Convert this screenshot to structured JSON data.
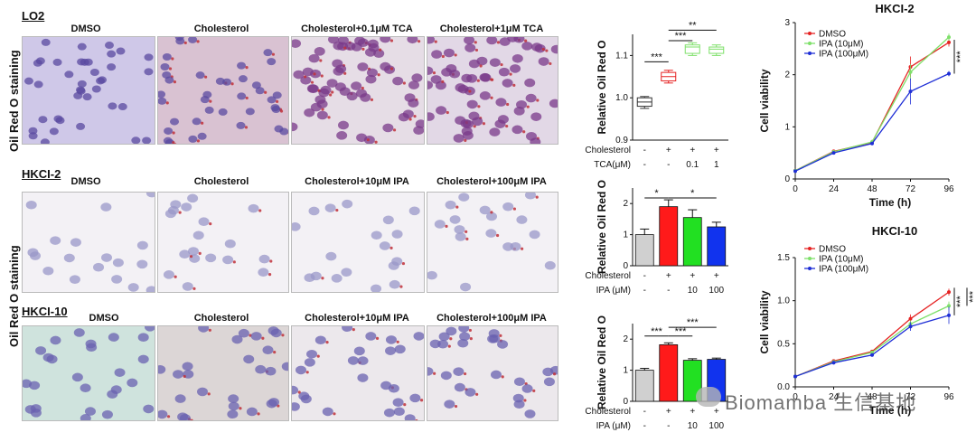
{
  "rows": {
    "lo2": {
      "cell": "LO2",
      "cols": [
        "DMSO",
        "Cholesterol",
        "Cholesterol+0.1μM TCA",
        "Cholesterol+1μM TCA"
      ]
    },
    "hkc2": {
      "cell": "HKCI-2",
      "cols": [
        "DMSO",
        "Cholesterol",
        "Cholesterol+10μM IPA",
        "Cholesterol+100μM IPA"
      ]
    },
    "hkc10": {
      "cell": "HKCI-10",
      "cols": [
        "DMSO",
        "Cholesterol",
        "Cholesterol+10μM IPA",
        "Cholesterol+100μM IPA"
      ]
    }
  },
  "staining_label": "Oil Red O staining",
  "colors": {
    "dmso": "#e52222",
    "low": "#7ee06a",
    "high": "#1f2fd6",
    "grey": "#d0d0d0",
    "red": "#ff1a1a",
    "green": "#22e022",
    "blue": "#1133ee"
  },
  "chart_data": [
    {
      "id": "box_lo2",
      "type": "box",
      "ylabel": "Relative Oil Red O",
      "ylim": [
        0.9,
        1.15
      ],
      "yticks": [
        "0.9",
        "1.0",
        "1.1"
      ],
      "groups": [
        {
          "name": "DMSO",
          "min": 0.975,
          "q1": 0.98,
          "median": 0.99,
          "q3": 1.0,
          "max": 1.003
        },
        {
          "name": "Cholesterol",
          "min": 1.035,
          "q1": 1.04,
          "median": 1.05,
          "q3": 1.06,
          "max": 1.065
        },
        {
          "name": "Cholesterol+0.1μM TCA",
          "min": 1.1,
          "q1": 1.105,
          "median": 1.12,
          "q3": 1.125,
          "max": 1.13
        },
        {
          "name": "Cholesterol+1μM TCA",
          "min": 1.1,
          "q1": 1.105,
          "median": 1.115,
          "q3": 1.12,
          "max": 1.125
        }
      ],
      "row_labels": [
        {
          "label": "Cholesterol",
          "cells": [
            "-",
            "+",
            "+",
            "+"
          ]
        },
        {
          "label": "TCA(μM)",
          "cells": [
            "-",
            "-",
            "0.1",
            "1"
          ]
        }
      ],
      "sigs": [
        {
          "text": "***",
          "from": 0,
          "to": 1,
          "y": 1.085
        },
        {
          "text": "***",
          "from": 1,
          "to": 2,
          "y": 1.135
        },
        {
          "text": "**",
          "from": 1,
          "to": 3,
          "y": 1.16
        }
      ]
    },
    {
      "id": "bar_hkc2",
      "type": "bar",
      "ylabel": "Relative Oil Red O",
      "ylim": [
        0,
        2.5
      ],
      "yticks": [
        "0",
        "1",
        "2"
      ],
      "values": [
        1.0,
        1.9,
        1.55,
        1.25
      ],
      "errors": [
        0.18,
        0.22,
        0.25,
        0.15
      ],
      "row_labels": [
        {
          "label": "Cholesterol",
          "cells": [
            "-",
            "+",
            "+",
            "+"
          ]
        },
        {
          "label": "IPA (μM)",
          "cells": [
            "-",
            "-",
            "10",
            "100"
          ]
        }
      ],
      "sigs": [
        {
          "text": "*",
          "from": 0,
          "to": 1,
          "y": 2.18
        },
        {
          "text": "*",
          "from": 1,
          "to": 3,
          "y": 2.18
        }
      ]
    },
    {
      "id": "bar_hkc10",
      "type": "bar",
      "ylabel": "Relative Oil Red O",
      "ylim": [
        0,
        2.5
      ],
      "yticks": [
        "0",
        "1",
        "2"
      ],
      "values": [
        1.0,
        1.82,
        1.32,
        1.35
      ],
      "errors": [
        0.06,
        0.06,
        0.05,
        0.04
      ],
      "row_labels": [
        {
          "label": "Cholesterol",
          "cells": [
            "-",
            "+",
            "+",
            "+"
          ]
        },
        {
          "label": "IPA (μM)",
          "cells": [
            "-",
            "-",
            "10",
            "100"
          ]
        }
      ],
      "sigs": [
        {
          "text": "***",
          "from": 0,
          "to": 1,
          "y": 2.1
        },
        {
          "text": "***",
          "from": 1,
          "to": 2,
          "y": 2.1
        },
        {
          "text": "***",
          "from": 1,
          "to": 3,
          "y": 2.38
        }
      ]
    },
    {
      "id": "line_hkc2",
      "type": "line",
      "title": "HKCI-2",
      "xlabel": "Time (h)",
      "ylabel": "Cell viability",
      "xlim": [
        0,
        96
      ],
      "ylim": [
        0,
        3
      ],
      "x": [
        0,
        24,
        48,
        72,
        96
      ],
      "xticks": [
        "0",
        "24",
        "48",
        "72",
        "96"
      ],
      "yticks": [
        "0",
        "1",
        "2",
        "3"
      ],
      "series": [
        {
          "name": "DMSO",
          "values": [
            0.16,
            0.53,
            0.7,
            2.15,
            2.62
          ],
          "errors": [
            0.02,
            0.03,
            0.05,
            0.2,
            0.08
          ]
        },
        {
          "name": "IPA (10μM)",
          "values": [
            0.16,
            0.52,
            0.71,
            2.05,
            2.72
          ],
          "errors": [
            0.02,
            0.03,
            0.04,
            0.15,
            0.07
          ]
        },
        {
          "name": "IPA (100μM)",
          "values": [
            0.15,
            0.5,
            0.68,
            1.68,
            2.02
          ],
          "errors": [
            0.02,
            0.03,
            0.03,
            0.25,
            0.05
          ]
        }
      ],
      "sig": "***"
    },
    {
      "id": "line_hkc10",
      "type": "line",
      "title": "HKCI-10",
      "xlabel": "Time (h)",
      "ylabel": "Cell viability",
      "xlim": [
        0,
        96
      ],
      "ylim": [
        0,
        1.5
      ],
      "x": [
        0,
        24,
        48,
        72,
        96
      ],
      "xticks": [
        "0",
        "24",
        "48",
        "72",
        "96"
      ],
      "yticks": [
        "0.0",
        "0.5",
        "1.0",
        "1.5"
      ],
      "series": [
        {
          "name": "DMSO",
          "values": [
            0.12,
            0.3,
            0.41,
            0.79,
            1.1
          ],
          "errors": [
            0.01,
            0.02,
            0.02,
            0.05,
            0.04
          ]
        },
        {
          "name": "IPA (10μM)",
          "values": [
            0.12,
            0.29,
            0.4,
            0.73,
            0.94
          ],
          "errors": [
            0.01,
            0.02,
            0.02,
            0.04,
            0.05
          ]
        },
        {
          "name": "IPA (100μM)",
          "values": [
            0.12,
            0.28,
            0.37,
            0.7,
            0.83
          ],
          "errors": [
            0.01,
            0.02,
            0.02,
            0.05,
            0.1
          ]
        }
      ],
      "sig": "***"
    }
  ],
  "watermark": "Biomamba 生信基地"
}
